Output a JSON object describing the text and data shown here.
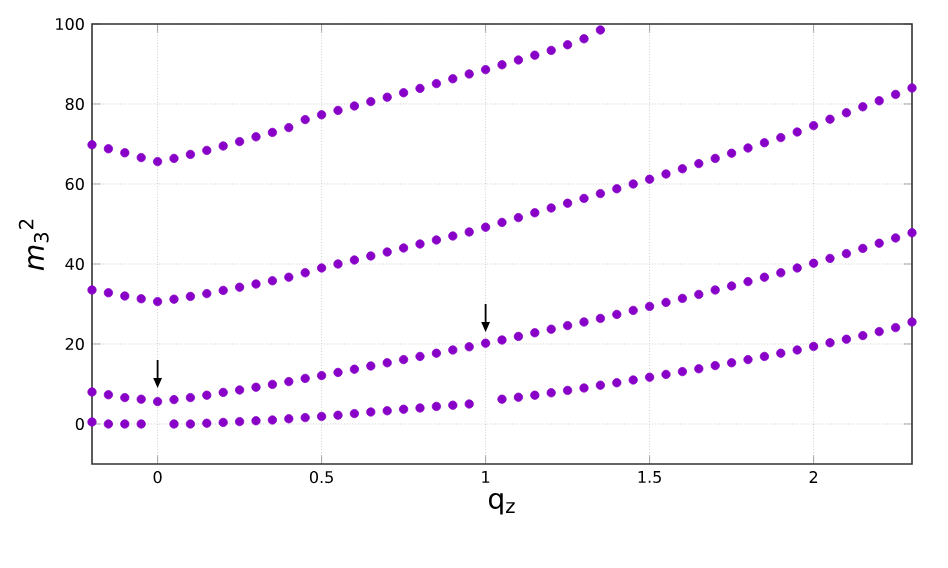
{
  "chart_data": {
    "type": "scatter",
    "xlabel": "q$_{z}$",
    "ylabel": "*m*$_{3}$$^{2}$",
    "x": [
      -0.2,
      -0.15,
      -0.1,
      -0.05,
      0,
      0.05,
      0.1,
      0.15,
      0.2,
      0.25,
      0.3,
      0.35,
      0.4,
      0.45,
      0.5,
      0.55,
      0.6,
      0.65,
      0.7,
      0.75,
      0.8,
      0.85,
      0.9,
      0.95,
      1.0,
      1.05,
      1.1,
      1.15,
      1.2,
      1.25,
      1.3,
      1.35,
      1.4,
      1.45,
      1.5,
      1.55,
      1.6,
      1.65,
      1.7,
      1.75,
      1.8,
      1.85,
      1.9,
      1.95,
      2.0,
      2.05,
      2.1,
      2.15,
      2.2,
      2.25,
      2.3
    ],
    "series": [
      {
        "color": "#8800c8",
        "values": [
          0.5,
          0,
          0,
          0,
          null,
          0,
          0,
          0.2,
          0.4,
          0.6,
          0.8,
          1.0,
          1.3,
          1.6,
          1.9,
          2.2,
          2.6,
          3.0,
          3.3,
          3.7,
          4.0,
          4.4,
          4.7,
          5.0,
          null,
          6.2,
          6.7,
          7.2,
          7.8,
          8.4,
          9.0,
          9.7,
          10.3,
          11.0,
          11.7,
          12.4,
          13.1,
          13.8,
          14.6,
          15.3,
          16.1,
          16.9,
          17.7,
          18.5,
          19.4,
          20.3,
          21.2,
          22.1,
          23.1,
          24.1,
          25.5
        ]
      },
      {
        "color": "#8800c8",
        "values": [
          8.0,
          7.3,
          6.6,
          6.2,
          5.6,
          6.1,
          6.6,
          7.2,
          7.9,
          8.5,
          9.2,
          9.9,
          10.6,
          11.4,
          12.1,
          12.9,
          13.7,
          14.5,
          15.3,
          16.1,
          16.9,
          17.7,
          18.5,
          19.3,
          20.2,
          21.0,
          21.9,
          22.8,
          23.7,
          24.6,
          25.5,
          26.4,
          27.4,
          28.4,
          29.4,
          30.4,
          31.4,
          32.4,
          33.5,
          34.5,
          35.6,
          36.7,
          37.8,
          39.0,
          40.2,
          41.4,
          42.6,
          43.9,
          45.2,
          46.5,
          47.8
        ]
      },
      {
        "color": "#8800c8",
        "values": [
          33.5,
          32.8,
          32.0,
          31.3,
          30.6,
          31.2,
          31.9,
          32.6,
          33.4,
          34.2,
          35.0,
          35.8,
          36.7,
          37.8,
          39.0,
          40.0,
          41.0,
          42.0,
          43.0,
          44.0,
          45.0,
          46.0,
          47.0,
          48.0,
          49.2,
          50.4,
          51.6,
          52.8,
          54.0,
          55.2,
          56.4,
          57.6,
          58.8,
          60.0,
          61.2,
          62.5,
          63.8,
          65.1,
          66.4,
          67.7,
          69.0,
          70.3,
          71.6,
          73.0,
          74.6,
          76.2,
          77.8,
          79.3,
          80.8,
          82.4,
          84.0
        ]
      },
      {
        "color": "#8800c8",
        "values": [
          69.8,
          68.8,
          67.8,
          66.6,
          65.6,
          66.4,
          67.4,
          68.4,
          69.5,
          70.6,
          71.8,
          72.9,
          74.1,
          76.1,
          77.3,
          78.4,
          79.5,
          80.6,
          81.7,
          82.8,
          83.9,
          85.1,
          86.3,
          87.5,
          88.6,
          89.8,
          91.0,
          92.2,
          93.4,
          94.8,
          96.3,
          98.5,
          null,
          null,
          null,
          null,
          null,
          null,
          null,
          null,
          null,
          null,
          null,
          null,
          null,
          null,
          null,
          null,
          null,
          null,
          null
        ]
      }
    ],
    "xlim": [
      -0.2,
      2.3
    ],
    "ylim": [
      -10,
      100
    ],
    "xticks": [
      0,
      0.5,
      1,
      1.5,
      2
    ],
    "yticks": [
      0,
      20,
      40,
      60,
      80,
      100
    ],
    "grid": true
  }
}
